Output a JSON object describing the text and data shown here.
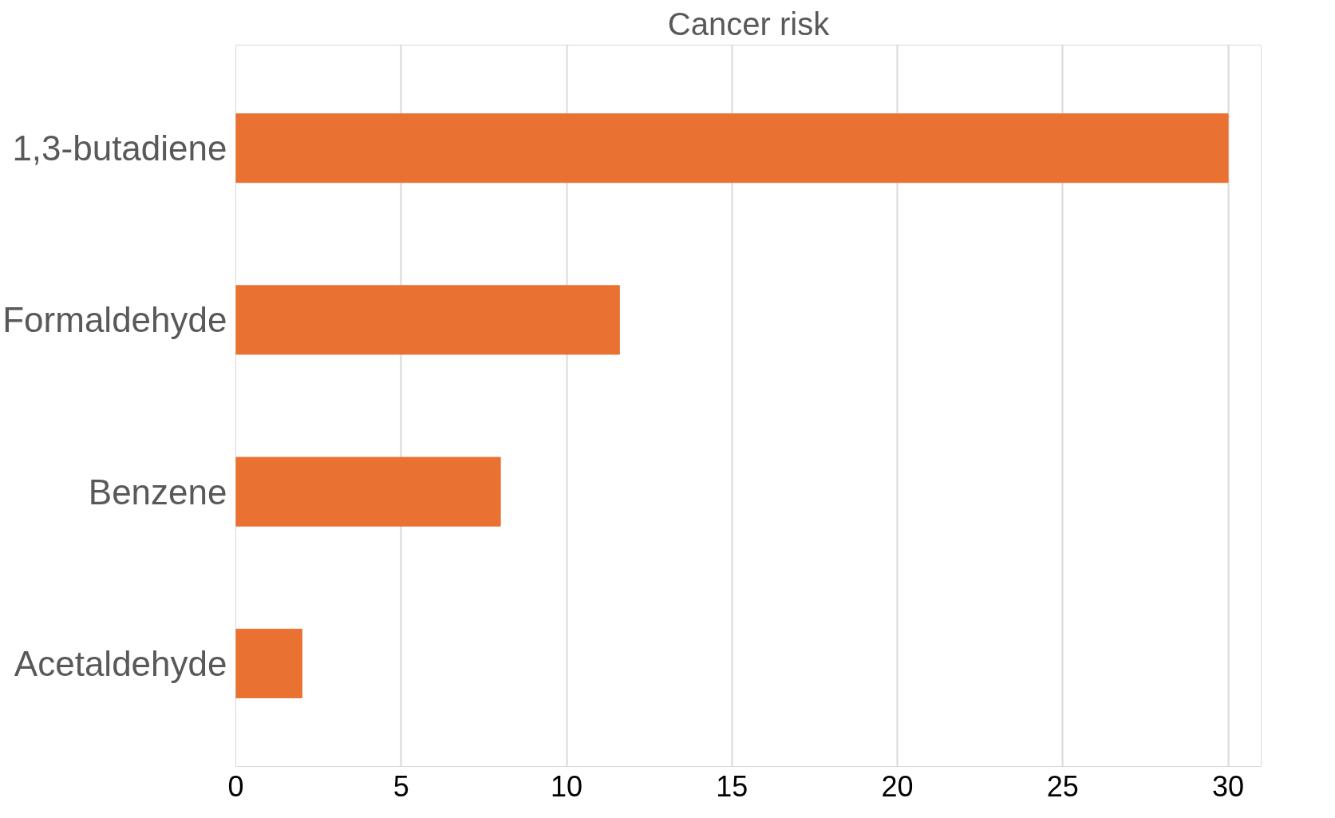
{
  "chart_data": {
    "type": "bar",
    "title": "Cancer risk",
    "orientation": "horizontal",
    "categories": [
      "1,3-butadiene",
      "Formaldehyde",
      "Benzene",
      "Acetaldehyde"
    ],
    "values": [
      30,
      11.6,
      8,
      2
    ],
    "color": "#e97132",
    "xlim": [
      0,
      31
    ],
    "xticks": [
      0,
      5,
      10,
      15,
      20,
      25,
      30
    ],
    "grid": "x"
  }
}
